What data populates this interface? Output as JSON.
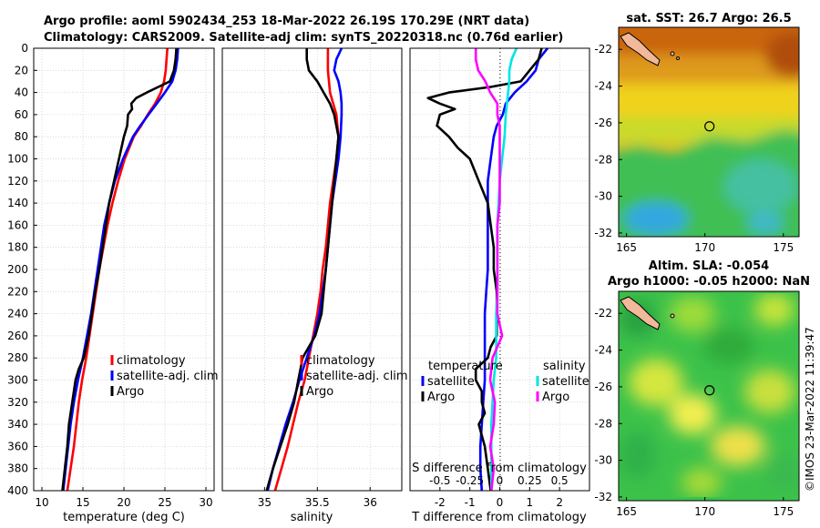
{
  "figure": {
    "title_line1": "Argo profile: aoml 5902434_253 18-Mar-2022 26.19S 170.29E (NRT data)",
    "title_line2": "Climatology: CARS2009. Satellite-adj clim: synTS_20220318.nc (0.76d earlier)",
    "timestamp": "©IMOS 23-Mar-2022 11:39:47"
  },
  "colors": {
    "climatology": "#ff0000",
    "satellite": "#0000ff",
    "argo": "#000000",
    "salinity_satellite": "#00e5e5",
    "salinity_argo": "#ff00ff",
    "land": "#f2b89a",
    "grid": "#d0d0d0"
  },
  "chart_data": [
    {
      "id": "temperature",
      "type": "line",
      "xlabel": "temperature (deg C)",
      "ylabel": "",
      "xlim": [
        9,
        31
      ],
      "ylim": [
        400,
        0
      ],
      "xticks": [
        10,
        15,
        20,
        25,
        30
      ],
      "yticks": [
        0,
        20,
        40,
        60,
        80,
        100,
        120,
        140,
        160,
        180,
        200,
        220,
        240,
        260,
        280,
        300,
        320,
        340,
        360,
        380,
        400
      ],
      "grid": true,
      "legend": [
        "climatology",
        "satellite-adj. clim",
        "Argo"
      ],
      "series": [
        {
          "name": "climatology",
          "color": "#ff0000",
          "depth": [
            0,
            10,
            20,
            30,
            40,
            50,
            60,
            70,
            80,
            100,
            120,
            140,
            160,
            180,
            200,
            220,
            240,
            260,
            280,
            300,
            320,
            340,
            360,
            380,
            400
          ],
          "values": [
            25.3,
            25.2,
            25.1,
            24.9,
            24.5,
            23.8,
            22.9,
            22.1,
            21.2,
            20.1,
            19.3,
            18.6,
            18.0,
            17.5,
            17.0,
            16.6,
            16.2,
            15.8,
            15.4,
            14.9,
            14.5,
            14.2,
            13.9,
            13.5,
            13.1
          ]
        },
        {
          "name": "satellite-adj. clim",
          "color": "#0000ff",
          "depth": [
            0,
            10,
            20,
            30,
            40,
            50,
            60,
            70,
            80,
            100,
            120,
            140,
            160,
            180,
            200,
            220,
            240,
            260,
            280,
            300,
            320,
            340,
            360,
            380,
            400
          ],
          "values": [
            26.6,
            26.5,
            26.3,
            25.9,
            25.0,
            24.0,
            23.0,
            22.0,
            21.1,
            19.9,
            18.9,
            18.2,
            17.6,
            17.2,
            16.8,
            16.4,
            16.0,
            15.5,
            15.0,
            14.4,
            13.9,
            13.5,
            13.2,
            12.9,
            12.6
          ]
        },
        {
          "name": "Argo",
          "color": "#000000",
          "depth": [
            0,
            10,
            20,
            30,
            35,
            40,
            45,
            50,
            55,
            60,
            70,
            80,
            100,
            120,
            140,
            160,
            180,
            200,
            220,
            240,
            260,
            280,
            290,
            300,
            320,
            340,
            360,
            380,
            400
          ],
          "values": [
            26.4,
            26.3,
            26.1,
            25.6,
            24.2,
            22.8,
            21.5,
            20.9,
            21.0,
            20.5,
            20.4,
            20.0,
            19.4,
            18.8,
            18.2,
            17.8,
            17.4,
            17.0,
            16.5,
            16.1,
            15.7,
            15.1,
            14.5,
            14.1,
            13.7,
            13.3,
            13.1,
            12.8,
            12.5
          ]
        }
      ]
    },
    {
      "id": "salinity",
      "type": "line",
      "xlabel": "salinity",
      "ylabel": "",
      "xlim": [
        34.6,
        36.3
      ],
      "ylim": [
        400,
        0
      ],
      "xticks": [
        35,
        35.5,
        36
      ],
      "yticks": [
        0,
        20,
        40,
        60,
        80,
        100,
        120,
        140,
        160,
        180,
        200,
        220,
        240,
        260,
        280,
        300,
        320,
        340,
        360,
        380,
        400
      ],
      "grid": true,
      "legend": [
        "climatology",
        "satellite-adj. clim",
        "Argo"
      ],
      "series": [
        {
          "name": "climatology",
          "color": "#ff0000",
          "depth": [
            0,
            20,
            40,
            60,
            80,
            100,
            120,
            140,
            160,
            180,
            200,
            220,
            240,
            260,
            280,
            300,
            320,
            340,
            360,
            380,
            400
          ],
          "values": [
            35.6,
            35.6,
            35.62,
            35.68,
            35.7,
            35.68,
            35.65,
            35.62,
            35.6,
            35.58,
            35.55,
            35.53,
            35.5,
            35.46,
            35.42,
            35.38,
            35.32,
            35.27,
            35.22,
            35.16,
            35.1
          ]
        },
        {
          "name": "satellite-adj. clim",
          "color": "#0000ff",
          "depth": [
            0,
            10,
            20,
            30,
            40,
            50,
            60,
            80,
            100,
            120,
            140,
            160,
            180,
            200,
            220,
            240,
            260,
            280,
            300,
            320,
            340,
            360,
            380,
            400
          ],
          "values": [
            35.73,
            35.68,
            35.66,
            35.7,
            35.72,
            35.73,
            35.73,
            35.72,
            35.7,
            35.67,
            35.64,
            35.62,
            35.6,
            35.58,
            35.55,
            35.52,
            35.47,
            35.4,
            35.33,
            35.27,
            35.2,
            35.14,
            35.08,
            35.03
          ]
        },
        {
          "name": "Argo",
          "color": "#000000",
          "depth": [
            0,
            10,
            20,
            30,
            40,
            50,
            60,
            70,
            80,
            100,
            120,
            140,
            160,
            180,
            200,
            220,
            240,
            260,
            280,
            290,
            300,
            310,
            320,
            340,
            360,
            380,
            400
          ],
          "values": [
            35.4,
            35.4,
            35.42,
            35.5,
            35.56,
            35.62,
            35.66,
            35.68,
            35.7,
            35.68,
            35.66,
            35.64,
            35.62,
            35.6,
            35.58,
            35.56,
            35.54,
            35.48,
            35.36,
            35.34,
            35.32,
            35.3,
            35.28,
            35.22,
            35.15,
            35.08,
            35.02
          ]
        }
      ]
    },
    {
      "id": "differences",
      "type": "line",
      "xlabel": "T difference from climatology",
      "xlabel_top": "S difference from climatology",
      "xlim": [
        -3,
        3
      ],
      "ylim": [
        400,
        0
      ],
      "xticks": [
        -2,
        -1,
        0,
        1,
        2
      ],
      "xtick_labels": [
        "-2",
        "-1",
        "0",
        "1",
        "2"
      ],
      "xticks_salinity": [
        -0.5,
        -0.25,
        0,
        0.25,
        0.5
      ],
      "xtick_labels_salinity": [
        "-0.5",
        "-0.25",
        "0",
        "0.25",
        "0.5"
      ],
      "yticks": [
        0,
        20,
        40,
        60,
        80,
        100,
        120,
        140,
        160,
        180,
        200,
        220,
        240,
        260,
        280,
        300,
        320,
        340,
        360,
        380,
        400
      ],
      "grid": true,
      "legend_temperature_title": "temperature",
      "legend_salinity_title": "salinity",
      "legend_temperature": [
        "satellite",
        "Argo"
      ],
      "legend_salinity": [
        "satellite",
        "Argo"
      ],
      "series": [
        {
          "name": "temperature satellite",
          "color": "#0000ff",
          "depth": [
            0,
            10,
            20,
            30,
            40,
            50,
            60,
            70,
            80,
            100,
            120,
            140,
            160,
            180,
            200,
            220,
            240,
            260,
            280,
            300,
            320,
            340,
            360,
            380,
            400
          ],
          "values": [
            1.6,
            1.3,
            1.2,
            0.9,
            0.5,
            0.2,
            0.1,
            -0.1,
            -0.2,
            -0.3,
            -0.4,
            -0.4,
            -0.4,
            -0.4,
            -0.4,
            -0.45,
            -0.5,
            -0.5,
            -0.5,
            -0.5,
            -0.55,
            -0.6,
            -0.65,
            -0.65,
            -0.6
          ]
        },
        {
          "name": "temperature Argo",
          "color": "#000000",
          "depth": [
            0,
            10,
            20,
            30,
            35,
            40,
            45,
            50,
            55,
            60,
            70,
            80,
            90,
            100,
            120,
            140,
            160,
            180,
            200,
            220,
            240,
            260,
            270,
            280,
            290,
            300,
            310,
            320,
            330,
            340,
            350,
            360,
            380,
            400
          ],
          "values": [
            1.4,
            1.3,
            1.0,
            0.7,
            -0.3,
            -1.7,
            -2.4,
            -2.0,
            -1.5,
            -2.0,
            -2.1,
            -1.7,
            -1.4,
            -1.0,
            -0.7,
            -0.4,
            -0.3,
            -0.2,
            -0.2,
            -0.1,
            -0.1,
            -0.1,
            -0.3,
            -0.4,
            -0.8,
            -0.8,
            -0.6,
            -0.6,
            -0.5,
            -0.7,
            -0.6,
            -0.5,
            -0.4,
            -0.3
          ]
        },
        {
          "name": "salinity satellite",
          "color": "#00e5e5",
          "depth": [
            0,
            10,
            20,
            30,
            40,
            60,
            80,
            100,
            120,
            140,
            160,
            180,
            200,
            220,
            240,
            260,
            280,
            300,
            320,
            340,
            360,
            380,
            400
          ],
          "values": [
            0.14,
            0.1,
            0.08,
            0.08,
            0.07,
            0.05,
            0.04,
            0.02,
            0.0,
            -0.01,
            -0.02,
            -0.02,
            -0.02,
            -0.02,
            -0.03,
            -0.03,
            -0.03,
            -0.05,
            -0.06,
            -0.07,
            -0.07,
            -0.07,
            -0.07
          ]
        },
        {
          "name": "salinity Argo",
          "color": "#ff00ff",
          "depth": [
            0,
            10,
            20,
            30,
            40,
            50,
            60,
            70,
            80,
            100,
            120,
            140,
            160,
            180,
            200,
            220,
            240,
            260,
            280,
            300,
            320,
            340,
            360,
            380,
            400
          ],
          "values": [
            -0.2,
            -0.2,
            -0.18,
            -0.12,
            -0.08,
            -0.02,
            -0.02,
            0.0,
            0.0,
            0.0,
            0.0,
            0.0,
            -0.02,
            -0.02,
            -0.02,
            -0.02,
            -0.02,
            0.02,
            -0.06,
            -0.08,
            -0.04,
            -0.05,
            -0.08,
            -0.05,
            -0.07
          ]
        }
      ]
    },
    {
      "id": "sst_map",
      "type": "heatmap",
      "title": "sat. SST: 26.7 Argo: 26.5",
      "xlim": [
        164.5,
        176
      ],
      "ylim": [
        -32.2,
        -20.8
      ],
      "xticks": [
        165,
        170,
        175
      ],
      "yticks": [
        -22,
        -24,
        -26,
        -28,
        -30,
        -32
      ],
      "profile_lon": 170.29,
      "profile_lat": -26.19
    },
    {
      "id": "sla_map",
      "type": "heatmap",
      "title_line1": "Altim. SLA: -0.054",
      "title_line2": "Argo h1000: -0.05 h2000: NaN",
      "xlim": [
        164.5,
        176
      ],
      "ylim": [
        -32.2,
        -20.8
      ],
      "xticks": [
        165,
        170,
        175
      ],
      "yticks": [
        -22,
        -24,
        -26,
        -28,
        -30,
        -32
      ],
      "profile_lon": 170.29,
      "profile_lat": -26.19
    }
  ]
}
